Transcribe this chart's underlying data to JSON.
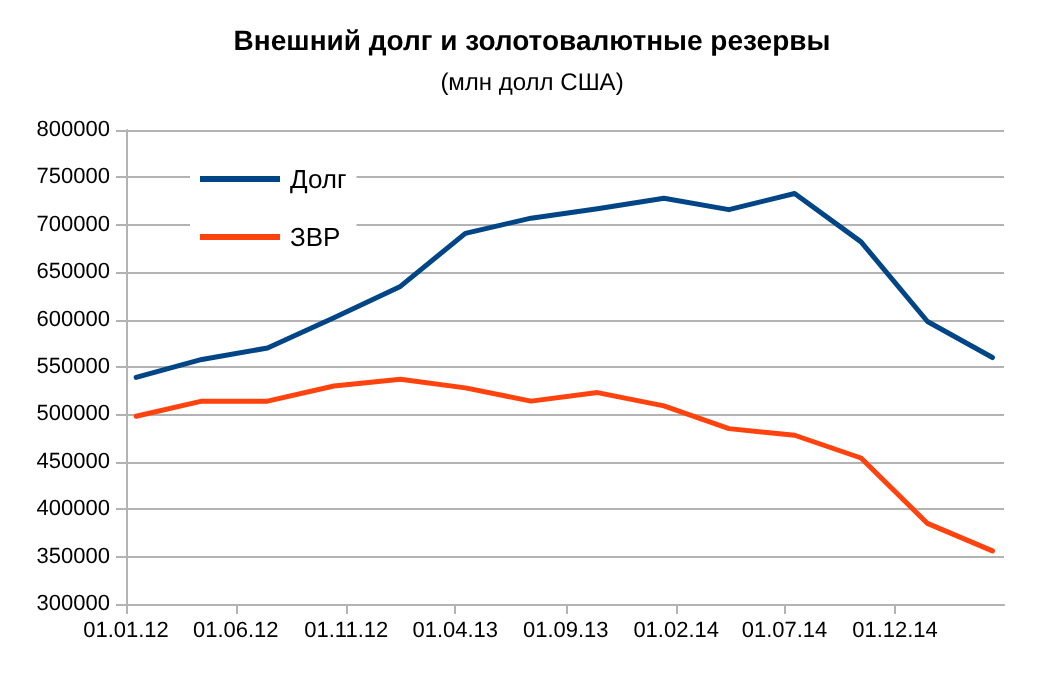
{
  "chart_data": {
    "type": "line",
    "title": "Внешний долг и золотовалютные резервы",
    "subtitle": "(млн долл США)",
    "x": [
      "2012-01-15",
      "2012-04-15",
      "2012-07-15",
      "2012-10-15",
      "2013-01-15",
      "2013-04-15",
      "2013-07-15",
      "2013-10-15",
      "2014-01-15",
      "2014-04-15",
      "2014-07-15",
      "2014-10-15",
      "2015-01-15",
      "2015-04-15"
    ],
    "series": [
      {
        "name": "Долг",
        "color": "#004586",
        "values": [
          539000,
          558000,
          570000,
          602000,
          635000,
          691000,
          707000,
          717000,
          728000,
          716000,
          733000,
          682000,
          598000,
          560000
        ]
      },
      {
        "name": "ЗВР",
        "color": "#ff420e",
        "values": [
          498000,
          514000,
          514000,
          530000,
          537000,
          528000,
          514000,
          523000,
          509000,
          485000,
          478000,
          454000,
          385000,
          356000
        ]
      }
    ],
    "xlim": [
      "2012-01-01",
      "2015-05-01"
    ],
    "xticks": [
      {
        "value": "2012-01-01",
        "label": "01.01.12"
      },
      {
        "value": "2012-06-01",
        "label": "01.06.12"
      },
      {
        "value": "2012-11-01",
        "label": "01.11.12"
      },
      {
        "value": "2013-04-01",
        "label": "01.04.13"
      },
      {
        "value": "2013-09-01",
        "label": "01.09.13"
      },
      {
        "value": "2014-02-01",
        "label": "01.02.14"
      },
      {
        "value": "2014-07-01",
        "label": "01.07.14"
      },
      {
        "value": "2014-12-01",
        "label": "01.12.14"
      }
    ],
    "ylim": [
      300000,
      800000
    ],
    "yticks": [
      300000,
      350000,
      400000,
      450000,
      500000,
      550000,
      600000,
      650000,
      700000,
      750000,
      800000
    ],
    "grid": "y",
    "legend": "top left",
    "marker": "none",
    "line_style": "solid"
  }
}
